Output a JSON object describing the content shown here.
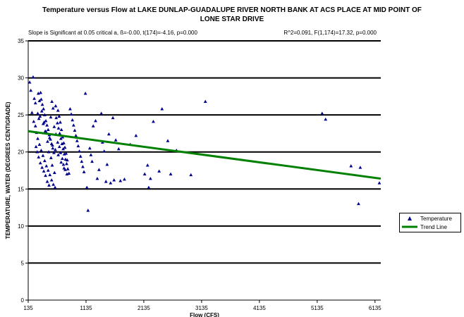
{
  "chart_data": {
    "type": "scatter",
    "title_lines": [
      "Temperature versus Flow at LAKE DUNLAP-GUADALUPE RIVER NORTH BANK AT ACS PLACE AT MID POINT OF",
      "LONE STAR DRIVE"
    ],
    "stat_left": "Slope is Significant at 0.05 critical a, ß=-0.00, t(174)=-4.16, p=0.000",
    "stat_right": "R^2=0.091, F(1,174)=17.32, p=0.000",
    "xlabel": "Flow (CFS)",
    "ylabel": "TEMPERATURE, WATER (DEGREES CENTIGRADE)",
    "xlim": [
      135,
      6235
    ],
    "ylim": [
      0,
      35
    ],
    "x_ticks": [
      "135",
      "1135",
      "2135",
      "3135",
      "4135",
      "5135",
      "6135"
    ],
    "y_ticks": [
      "0",
      "5",
      "10",
      "15",
      "20",
      "25",
      "30",
      "35"
    ],
    "grid": "horizontal-major",
    "legend_position": "right",
    "series": [
      {
        "name": "Temperature",
        "marker": "triangle",
        "color": "#00008B",
        "points": [
          [
            160,
            29.4
          ],
          [
            220,
            30.1
          ],
          [
            180,
            28.3
          ],
          [
            240,
            27.2
          ],
          [
            260,
            26.6
          ],
          [
            300,
            25.2
          ],
          [
            320,
            24.5
          ],
          [
            350,
            28.0
          ],
          [
            360,
            27.1
          ],
          [
            380,
            26.4
          ],
          [
            400,
            25.8
          ],
          [
            420,
            25.0
          ],
          [
            440,
            24.2
          ],
          [
            460,
            23.6
          ],
          [
            480,
            23.0
          ],
          [
            500,
            22.3
          ],
          [
            520,
            21.7
          ],
          [
            540,
            21.1
          ],
          [
            560,
            20.5
          ],
          [
            580,
            19.9
          ],
          [
            200,
            25.3
          ],
          [
            230,
            24.1
          ],
          [
            260,
            23.5
          ],
          [
            280,
            22.6
          ],
          [
            300,
            21.8
          ],
          [
            330,
            21.0
          ],
          [
            360,
            20.2
          ],
          [
            390,
            19.5
          ],
          [
            420,
            18.8
          ],
          [
            450,
            18.1
          ],
          [
            480,
            17.5
          ],
          [
            510,
            16.9
          ],
          [
            540,
            16.2
          ],
          [
            570,
            15.6
          ],
          [
            600,
            15.2
          ],
          [
            620,
            24.6
          ],
          [
            640,
            23.9
          ],
          [
            660,
            23.2
          ],
          [
            680,
            22.5
          ],
          [
            700,
            21.8
          ],
          [
            720,
            21.1
          ],
          [
            740,
            20.4
          ],
          [
            760,
            19.7
          ],
          [
            780,
            19.0
          ],
          [
            800,
            18.4
          ],
          [
            820,
            17.7
          ],
          [
            840,
            17.1
          ],
          [
            860,
            25.8
          ],
          [
            880,
            25.1
          ],
          [
            900,
            24.3
          ],
          [
            920,
            23.6
          ],
          [
            940,
            22.9
          ],
          [
            960,
            22.2
          ],
          [
            980,
            21.5
          ],
          [
            1000,
            20.8
          ],
          [
            1020,
            20.1
          ],
          [
            1040,
            19.4
          ],
          [
            1060,
            18.7
          ],
          [
            1080,
            18.0
          ],
          [
            1100,
            17.3
          ],
          [
            310,
            27.9
          ],
          [
            330,
            26.9
          ],
          [
            370,
            25.5
          ],
          [
            410,
            24.0
          ],
          [
            430,
            22.8
          ],
          [
            470,
            21.4
          ],
          [
            490,
            20.0
          ],
          [
            530,
            19.2
          ],
          [
            550,
            18.2
          ],
          [
            590,
            17.2
          ],
          [
            610,
            26.2
          ],
          [
            650,
            25.6
          ],
          [
            670,
            24.8
          ],
          [
            690,
            24.0
          ],
          [
            710,
            23.0
          ],
          [
            730,
            22.0
          ],
          [
            750,
            21.2
          ],
          [
            770,
            20.6
          ],
          [
            790,
            19.8
          ],
          [
            810,
            18.9
          ],
          [
            340,
            24.8
          ],
          [
            395,
            23.8
          ],
          [
            445,
            22.7
          ],
          [
            505,
            21.9
          ],
          [
            555,
            20.9
          ],
          [
            605,
            20.3
          ],
          [
            655,
            19.6
          ],
          [
            705,
            18.6
          ],
          [
            755,
            17.8
          ],
          [
            805,
            17.0
          ],
          [
            270,
            20.7
          ],
          [
            290,
            20.0
          ],
          [
            315,
            19.3
          ],
          [
            345,
            18.5
          ],
          [
            375,
            17.9
          ],
          [
            405,
            17.4
          ],
          [
            435,
            16.8
          ],
          [
            465,
            16.0
          ],
          [
            495,
            15.5
          ],
          [
            525,
            24.7
          ],
          [
            545,
            26.8
          ],
          [
            565,
            25.9
          ],
          [
            585,
            23.4
          ],
          [
            615,
            22.4
          ],
          [
            645,
            21.3
          ],
          [
            675,
            20.7
          ],
          [
            695,
            19.9
          ],
          [
            725,
            19.1
          ],
          [
            745,
            18.3
          ],
          [
            775,
            17.6
          ],
          [
            1125,
            27.9
          ],
          [
            1150,
            15.2
          ],
          [
            1170,
            12.1
          ],
          [
            1200,
            20.5
          ],
          [
            1220,
            19.6
          ],
          [
            1240,
            18.7
          ],
          [
            1260,
            23.5
          ],
          [
            1300,
            24.2
          ],
          [
            1330,
            16.4
          ],
          [
            1360,
            17.6
          ],
          [
            1400,
            25.2
          ],
          [
            1420,
            21.3
          ],
          [
            1450,
            20.1
          ],
          [
            1480,
            16.0
          ],
          [
            1500,
            18.3
          ],
          [
            1530,
            22.4
          ],
          [
            1560,
            15.8
          ],
          [
            1600,
            24.6
          ],
          [
            1620,
            16.2
          ],
          [
            1650,
            21.6
          ],
          [
            1700,
            20.4
          ],
          [
            1730,
            16.1
          ],
          [
            1800,
            16.3
          ],
          [
            1900,
            21.0
          ],
          [
            2000,
            22.2
          ],
          [
            2150,
            17.0
          ],
          [
            2200,
            18.2
          ],
          [
            2220,
            15.2
          ],
          [
            2250,
            16.4
          ],
          [
            2300,
            24.1
          ],
          [
            2400,
            17.4
          ],
          [
            2450,
            25.8
          ],
          [
            2550,
            21.5
          ],
          [
            2600,
            17.0
          ],
          [
            2700,
            20.2
          ],
          [
            2950,
            16.9
          ],
          [
            3200,
            26.8
          ],
          [
            5220,
            25.2
          ],
          [
            5280,
            24.4
          ],
          [
            5720,
            18.1
          ],
          [
            5850,
            13.0
          ],
          [
            5880,
            17.9
          ],
          [
            6210,
            15.8
          ]
        ]
      },
      {
        "name": "Trend Line",
        "type": "line",
        "color": "#008000",
        "points": [
          [
            135,
            22.8
          ],
          [
            6235,
            16.4
          ]
        ]
      }
    ]
  }
}
